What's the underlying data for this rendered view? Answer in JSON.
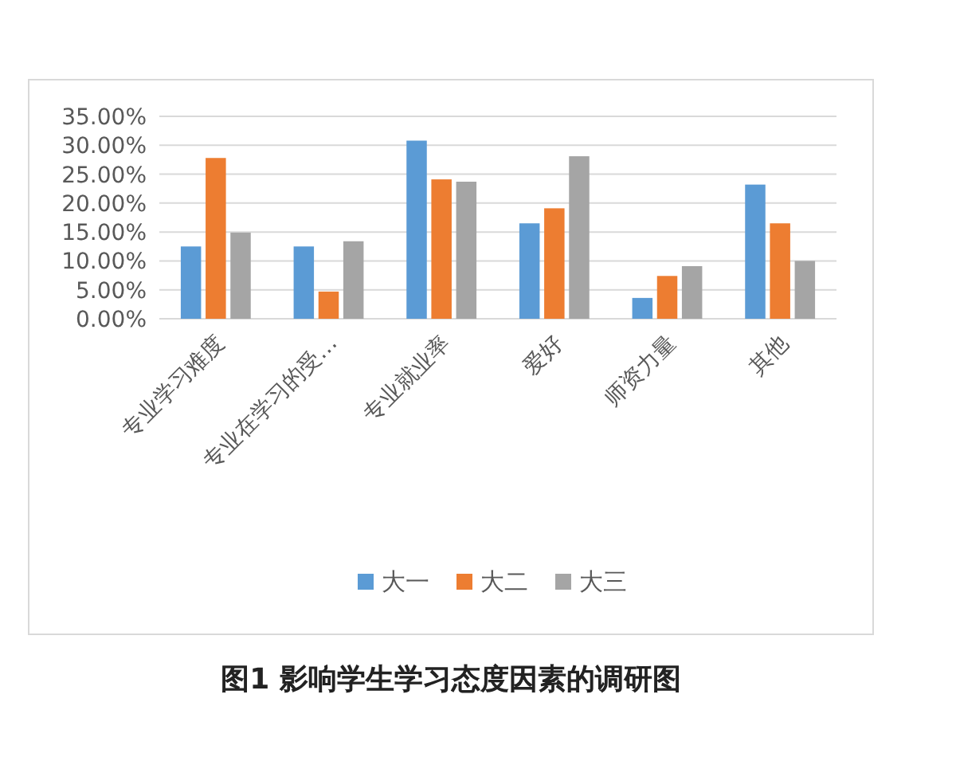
{
  "chart_data": {
    "type": "bar",
    "title": "图1  影响学生学习态度因素的调研图",
    "categories": [
      "专业学习难度",
      "专业在学习的受…",
      "专业就业率",
      "爱好",
      "师资力量",
      "其他"
    ],
    "series": [
      {
        "name": "大一",
        "color": "#5b9bd5",
        "values": [
          12.5,
          12.5,
          30.8,
          16.5,
          3.6,
          23.2
        ]
      },
      {
        "name": "大二",
        "color": "#ed7d31",
        "values": [
          27.8,
          4.7,
          24.1,
          19.1,
          7.4,
          16.5
        ]
      },
      {
        "name": "大三",
        "color": "#a5a5a5",
        "values": [
          14.9,
          13.4,
          23.7,
          28.1,
          9.1,
          10.0
        ]
      }
    ],
    "ylim": [
      0,
      35
    ],
    "yticks": [
      {
        "value": 0,
        "label": "0.00%"
      },
      {
        "value": 5,
        "label": "5.00%"
      },
      {
        "value": 10,
        "label": "10.00%"
      },
      {
        "value": 15,
        "label": "15.00%"
      },
      {
        "value": 20,
        "label": "20.00%"
      },
      {
        "value": 25,
        "label": "25.00%"
      },
      {
        "value": 30,
        "label": "30.00%"
      },
      {
        "value": 35,
        "label": "35.00%"
      }
    ],
    "grid": "y",
    "legend": "bottom"
  }
}
